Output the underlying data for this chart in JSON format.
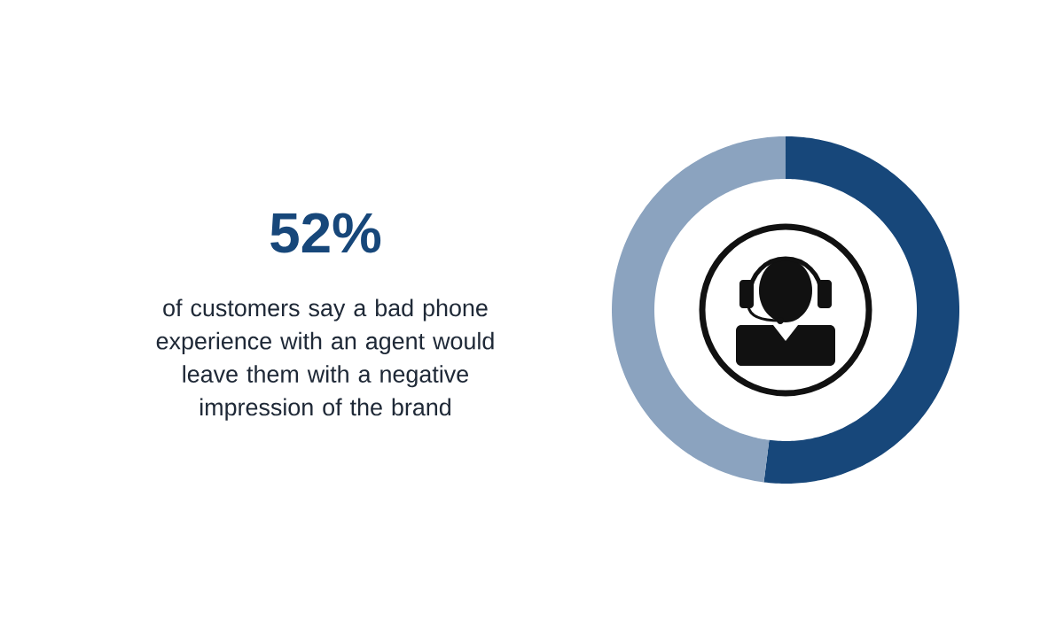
{
  "chart_data": {
    "type": "donut",
    "title": "52%",
    "subtitle": "of customers say a bad phone experience with an agent would leave them with a negative impression of the brand",
    "categories": [
      null,
      null
    ],
    "values": [
      52,
      48
    ],
    "colors": [
      "#17477a",
      "#8ba3bf"
    ]
  }
}
